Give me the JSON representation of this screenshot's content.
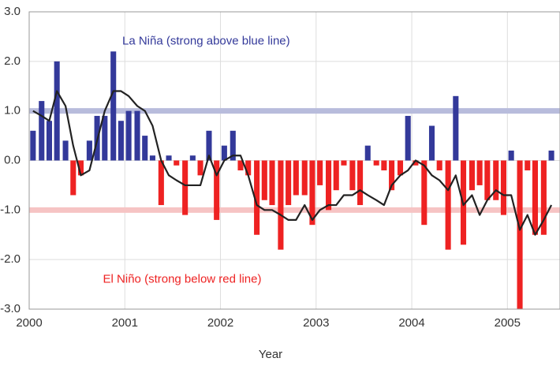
{
  "chart_data": {
    "type": "bar",
    "xlabel": "Year",
    "xlim": [
      2000,
      2005.55
    ],
    "xticks": [
      2000,
      2001,
      2002,
      2003,
      2004,
      2005
    ],
    "ylim": [
      -3,
      3
    ],
    "yticks": [
      {
        "value": 3,
        "label": "3.0"
      },
      {
        "value": 2,
        "label": "2.0"
      },
      {
        "value": 1,
        "label": "1.0"
      },
      {
        "value": 0,
        "label": "0.0"
      },
      {
        "value": -1,
        "label": "-1.0"
      },
      {
        "value": -2,
        "label": "-2.0"
      },
      {
        "value": -3,
        "label": "-3.0"
      }
    ],
    "grid": true,
    "bar_color_positive": "#33399a",
    "bar_color_negative": "#ee2222",
    "x": [
      2000.04,
      2000.13,
      2000.21,
      2000.29,
      2000.38,
      2000.46,
      2000.54,
      2000.63,
      2000.71,
      2000.79,
      2000.88,
      2000.96,
      2001.04,
      2001.13,
      2001.21,
      2001.29,
      2001.38,
      2001.46,
      2001.54,
      2001.63,
      2001.71,
      2001.79,
      2001.88,
      2001.96,
      2002.04,
      2002.13,
      2002.21,
      2002.29,
      2002.38,
      2002.46,
      2002.54,
      2002.63,
      2002.71,
      2002.79,
      2002.88,
      2002.96,
      2003.04,
      2003.13,
      2003.21,
      2003.29,
      2003.38,
      2003.46,
      2003.54,
      2003.63,
      2003.71,
      2003.79,
      2003.88,
      2003.96,
      2004.04,
      2004.13,
      2004.21,
      2004.29,
      2004.38,
      2004.46,
      2004.54,
      2004.63,
      2004.71,
      2004.79,
      2004.88,
      2004.96,
      2005.04,
      2005.13,
      2005.21,
      2005.29,
      2005.38,
      2005.46
    ],
    "values": [
      0.6,
      1.2,
      0.8,
      2.0,
      0.4,
      -0.7,
      -0.3,
      0.4,
      0.9,
      0.9,
      2.2,
      0.8,
      1.0,
      1.0,
      0.5,
      0.1,
      -0.9,
      0.1,
      -0.1,
      -1.1,
      0.1,
      -0.3,
      0.6,
      -1.2,
      0.3,
      0.6,
      -0.2,
      -0.3,
      -1.5,
      -0.8,
      -0.9,
      -1.8,
      -0.9,
      -0.7,
      -0.7,
      -1.3,
      -0.5,
      -1.0,
      -0.6,
      -0.1,
      -0.6,
      -0.9,
      0.3,
      -0.1,
      -0.2,
      -0.6,
      -0.3,
      0.9,
      -0.1,
      -1.3,
      0.7,
      -0.2,
      -1.8,
      1.3,
      -1.7,
      -0.6,
      -0.5,
      -0.8,
      -0.8,
      -1.1,
      0.2,
      -3.0,
      -0.2,
      -1.5,
      -1.5,
      0.2
    ],
    "line": {
      "color": "#222222",
      "values": [
        1.0,
        0.9,
        0.8,
        1.4,
        1.1,
        0.3,
        -0.3,
        -0.2,
        0.4,
        1.0,
        1.4,
        1.4,
        1.3,
        1.1,
        1.0,
        0.7,
        0.0,
        -0.3,
        -0.4,
        -0.5,
        -0.5,
        -0.5,
        0.1,
        -0.3,
        0.0,
        0.1,
        0.1,
        -0.3,
        -0.9,
        -1.0,
        -1.0,
        -1.1,
        -1.2,
        -1.2,
        -0.9,
        -1.2,
        -1.0,
        -0.9,
        -0.9,
        -0.7,
        -0.7,
        -0.6,
        -0.7,
        -0.8,
        -0.9,
        -0.5,
        -0.3,
        -0.2,
        0.0,
        -0.1,
        -0.3,
        -0.4,
        -0.6,
        -0.3,
        -0.9,
        -0.7,
        -1.1,
        -0.8,
        -0.6,
        -0.7,
        -0.7,
        -1.4,
        -1.1,
        -1.5,
        -1.2,
        -0.9
      ]
    },
    "reference_lines": [
      {
        "value": 1,
        "color": "#b8bcdc"
      },
      {
        "value": -1,
        "color": "#f6c4c4"
      }
    ],
    "annotations": [
      {
        "text": "La Niña (strong above blue line)",
        "color": "#33399a",
        "x": 2001.85,
        "y": 2.4
      },
      {
        "text": "El Niño (strong below red line)",
        "color": "#ee2222",
        "x": 2001.6,
        "y": -2.4
      }
    ]
  }
}
